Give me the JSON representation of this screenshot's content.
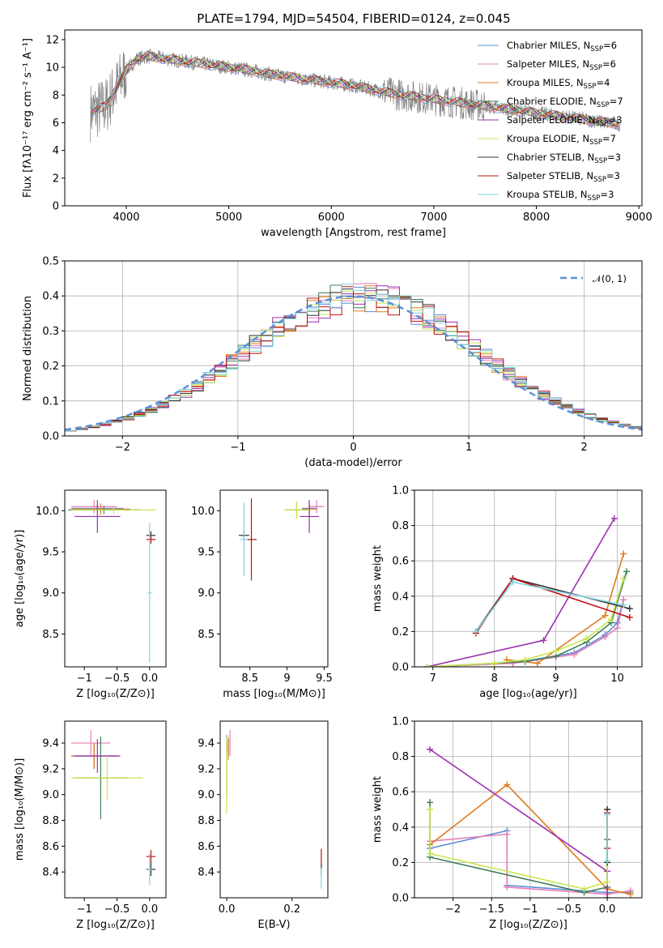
{
  "figure": {
    "title": "PLATE=1794, MJD=54504, FIBERID=0124, z=0.045"
  },
  "colors": {
    "chabrier_miles": "#5b8fd8",
    "salpeter_miles": "#e67fb8",
    "kroupa_miles": "#e07a1f",
    "chabrier_elodie": "#3f7f5a",
    "salpeter_elodie": "#9b2fb0",
    "kroupa_elodie": "#c8e64a",
    "chabrier_stelib": "#333333",
    "salpeter_stelib": "#c01010",
    "kroupa_stelib": "#7fd6e0",
    "data": "#808080",
    "grid": "#b0b0b0"
  },
  "legend_spectrum": [
    {
      "pre": "Chabrier MILES, N",
      "sub": "SSP",
      "post": "=6",
      "color_key": "chabrier_miles"
    },
    {
      "pre": "Salpeter MILES, N",
      "sub": "SSP",
      "post": "=6",
      "color_key": "salpeter_miles"
    },
    {
      "pre": "Kroupa MILES, N",
      "sub": "SSP",
      "post": "=4",
      "color_key": "kroupa_miles"
    },
    {
      "pre": "Chabrier ELODIE, N",
      "sub": "SSP",
      "post": "=7",
      "color_key": "chabrier_elodie"
    },
    {
      "pre": "Salpeter ELODIE, N",
      "sub": "SSP",
      "post": "=3",
      "color_key": "salpeter_elodie"
    },
    {
      "pre": "Kroupa ELODIE, N",
      "sub": "SSP",
      "post": "=7",
      "color_key": "kroupa_elodie"
    },
    {
      "pre": "Chabrier STELIB, N",
      "sub": "SSP",
      "post": "=3",
      "color_key": "chabrier_stelib"
    },
    {
      "pre": "Salpeter STELIB, N",
      "sub": "SSP",
      "post": "=3",
      "color_key": "salpeter_stelib"
    },
    {
      "pre": "Kroupa STELIB, N",
      "sub": "SSP",
      "post": "=3",
      "color_key": "kroupa_stelib"
    }
  ],
  "chart_data": [
    {
      "id": "spectrum",
      "type": "line",
      "xlabel": "wavelength [Angstrom, rest frame]",
      "ylabel": "Flux [fλ10⁻¹⁷ erg cm⁻² s⁻¹ A⁻¹]",
      "xlim": [
        3400,
        9030
      ],
      "ylim": [
        0,
        12.7
      ],
      "xticks": [
        4000,
        5000,
        6000,
        7000,
        8000,
        9000
      ],
      "yticks": [
        0,
        2,
        4,
        6,
        8,
        10,
        12
      ],
      "grid": false,
      "legend": "upper right",
      "continuum": {
        "x": [
          3650,
          3700,
          3800,
          3900,
          4000,
          4100,
          4200,
          4400,
          4600,
          4800,
          5000,
          5200,
          5400,
          5600,
          5800,
          6000,
          6200,
          6400,
          6600,
          6800,
          7000,
          7200,
          7400,
          7600,
          7800,
          8000,
          8200,
          8400,
          8600,
          8800
        ],
        "y": [
          6.8,
          6.9,
          7.2,
          8.5,
          9.8,
          10.6,
          10.8,
          10.6,
          10.4,
          10.2,
          10.0,
          9.8,
          9.5,
          9.3,
          9.1,
          8.9,
          8.7,
          8.4,
          8.1,
          7.9,
          7.7,
          7.5,
          7.3,
          7.1,
          6.9,
          6.7,
          6.5,
          6.3,
          6.1,
          5.9
        ]
      }
    },
    {
      "id": "residuals",
      "type": "histogram",
      "xlabel": "(data-model)/error",
      "ylabel": "Normed distribution",
      "xlim": [
        -2.5,
        2.5
      ],
      "ylim": [
        0,
        0.5
      ],
      "xticks": [
        -2,
        -1,
        0,
        1,
        2
      ],
      "yticks": [
        0.0,
        0.1,
        0.2,
        0.3,
        0.4,
        0.5
      ],
      "grid": true,
      "legend": "upper right",
      "legend_label": "𝒩(0, 1)",
      "bin_width": 0.1
    },
    {
      "id": "age_vs_Z",
      "type": "scatter",
      "xlabel": "Z [log₁₀(Z/Z⊙)]",
      "ylabel": "age  [log₁₀(age/yr)]",
      "xlim": [
        -1.3,
        0.25
      ],
      "ylim": [
        8.1,
        10.25
      ],
      "xticks": [
        -1.0,
        -0.5,
        0.0
      ],
      "yticks": [
        8.5,
        9.0,
        9.5,
        10.0
      ],
      "grid": false,
      "points": [
        {
          "m": "chabrier_miles",
          "x": -0.8,
          "y": 10.03,
          "xe": 0.4,
          "ye": 0.06
        },
        {
          "m": "salpeter_miles",
          "x": -0.85,
          "y": 10.05,
          "xe": 0.35,
          "ye": 0.08
        },
        {
          "m": "kroupa_miles",
          "x": -0.75,
          "y": 10.02,
          "xe": 0.45,
          "ye": 0.07
        },
        {
          "m": "chabrier_elodie",
          "x": -0.7,
          "y": 10.01,
          "xe": 0.55,
          "ye": 0.05
        },
        {
          "m": "salpeter_elodie",
          "x": -0.8,
          "y": 9.93,
          "xe": 0.35,
          "ye": 0.2
        },
        {
          "m": "kroupa_elodie",
          "x": -0.55,
          "y": 10.01,
          "xe": 0.65,
          "ye": 0.05
        },
        {
          "m": "chabrier_stelib",
          "x": 0.02,
          "y": 9.7,
          "xe": 0.07,
          "ye": 0.05
        },
        {
          "m": "salpeter_stelib",
          "x": 0.02,
          "y": 9.65,
          "xe": 0.07,
          "ye": 0.05
        },
        {
          "m": "kroupa_stelib",
          "x": 0.0,
          "y": 9.0,
          "xe": 0.03,
          "ye": 0.85
        }
      ]
    },
    {
      "id": "age_vs_mass",
      "type": "scatter",
      "xlabel": "mass [log₁₀(M/M⊙)]",
      "ylabel": "",
      "xlim": [
        8.1,
        9.55
      ],
      "ylim": [
        8.1,
        10.25
      ],
      "xticks": [
        8.5,
        9.0,
        9.5
      ],
      "yticks": [
        8.5,
        9.0,
        9.5,
        10.0
      ],
      "grid": false,
      "points": [
        {
          "m": "chabrier_miles",
          "x": 9.3,
          "y": 10.03,
          "xe": 0.1,
          "ye": 0.06
        },
        {
          "m": "salpeter_miles",
          "x": 9.4,
          "y": 10.05,
          "xe": 0.1,
          "ye": 0.08
        },
        {
          "m": "kroupa_miles",
          "x": 9.3,
          "y": 10.02,
          "xe": 0.1,
          "ye": 0.07
        },
        {
          "m": "chabrier_elodie",
          "x": 9.13,
          "y": 10.01,
          "xe": 0.15,
          "ye": 0.1
        },
        {
          "m": "salpeter_elodie",
          "x": 9.3,
          "y": 9.93,
          "xe": 0.13,
          "ye": 0.2
        },
        {
          "m": "kroupa_elodie",
          "x": 9.13,
          "y": 10.01,
          "xe": 0.17,
          "ye": 0.1
        },
        {
          "m": "chabrier_stelib",
          "x": 8.42,
          "y": 9.7,
          "xe": 0.07,
          "ye": 0.06
        },
        {
          "m": "salpeter_stelib",
          "x": 8.52,
          "y": 9.65,
          "xe": 0.07,
          "ye": 0.5
        },
        {
          "m": "kroupa_stelib",
          "x": 8.42,
          "y": 9.65,
          "xe": 0.05,
          "ye": 0.45
        }
      ]
    },
    {
      "id": "weight_vs_age",
      "type": "line",
      "xlabel": "age  [log₁₀(age/yr)]",
      "ylabel": "mass weight",
      "xlim": [
        6.7,
        10.4
      ],
      "ylim": [
        0,
        1.0
      ],
      "xticks": [
        7,
        8,
        9,
        10
      ],
      "yticks": [
        0.0,
        0.2,
        0.4,
        0.6,
        0.8,
        1.0
      ],
      "grid": true,
      "series": [
        {
          "m": "chabrier_miles",
          "x": [
            6.9,
            8.3,
            9.3,
            9.8,
            10.0,
            10.1
          ],
          "y": [
            0.0,
            0.02,
            0.08,
            0.18,
            0.25,
            0.38
          ]
        },
        {
          "m": "salpeter_miles",
          "x": [
            6.9,
            8.3,
            9.3,
            9.8,
            10.0,
            10.1
          ],
          "y": [
            0.0,
            0.02,
            0.07,
            0.17,
            0.22,
            0.38
          ]
        },
        {
          "m": "kroupa_miles",
          "x": [
            8.2,
            8.7,
            9.8,
            10.1
          ],
          "y": [
            0.04,
            0.02,
            0.29,
            0.64
          ]
        },
        {
          "m": "chabrier_elodie",
          "x": [
            6.9,
            8.0,
            8.5,
            9.0,
            9.5,
            9.9,
            10.15
          ],
          "y": [
            0.0,
            0.02,
            0.03,
            0.06,
            0.14,
            0.25,
            0.54
          ]
        },
        {
          "m": "salpeter_elodie",
          "x": [
            6.9,
            8.8,
            9.95
          ],
          "y": [
            0.0,
            0.15,
            0.84
          ]
        },
        {
          "m": "kroupa_elodie",
          "x": [
            6.9,
            8.0,
            8.5,
            9.0,
            9.5,
            9.9,
            10.1
          ],
          "y": [
            0.0,
            0.02,
            0.04,
            0.09,
            0.16,
            0.27,
            0.5
          ]
        },
        {
          "m": "chabrier_stelib",
          "x": [
            7.7,
            8.3,
            10.2
          ],
          "y": [
            0.2,
            0.5,
            0.33
          ]
        },
        {
          "m": "salpeter_stelib",
          "x": [
            7.7,
            8.3,
            10.2
          ],
          "y": [
            0.19,
            0.5,
            0.28
          ]
        },
        {
          "m": "kroupa_stelib",
          "x": [
            7.7,
            8.3,
            10.1
          ],
          "y": [
            0.2,
            0.48,
            0.35
          ]
        }
      ]
    },
    {
      "id": "mass_vs_Z",
      "type": "scatter",
      "xlabel": "Z [log₁₀(Z/Z⊙)]",
      "ylabel": "mass [log₁₀(M/M⊙)]",
      "xlim": [
        -1.3,
        0.25
      ],
      "ylim": [
        8.2,
        9.57
      ],
      "xticks": [
        -1.0,
        -0.5,
        0.0
      ],
      "yticks": [
        8.4,
        8.6,
        8.8,
        9.0,
        9.2,
        9.4
      ],
      "grid": false,
      "points": [
        {
          "m": "chabrier_miles",
          "x": -0.85,
          "y": 9.3,
          "xe": 0.35,
          "ye": 0.1
        },
        {
          "m": "salpeter_miles",
          "x": -0.9,
          "y": 9.4,
          "xe": 0.3,
          "ye": 0.1
        },
        {
          "m": "kroupa_miles",
          "x": -0.85,
          "y": 9.3,
          "xe": 0.35,
          "ye": 0.1
        },
        {
          "m": "chabrier_elodie",
          "x": -0.75,
          "y": 9.13,
          "xe": 0.4,
          "ye": 0.32
        },
        {
          "m": "salpeter_elodie",
          "x": -0.8,
          "y": 9.3,
          "xe": 0.35,
          "ye": 0.13
        },
        {
          "m": "kroupa_elodie",
          "x": -0.65,
          "y": 9.13,
          "xe": 0.55,
          "ye": 0.17
        },
        {
          "m": "chabrier_stelib",
          "x": 0.02,
          "y": 8.42,
          "xe": 0.07,
          "ye": 0.05
        },
        {
          "m": "salpeter_stelib",
          "x": 0.02,
          "y": 8.52,
          "xe": 0.07,
          "ye": 0.05
        },
        {
          "m": "kroupa_stelib",
          "x": 0.0,
          "y": 8.42,
          "xe": 0.03,
          "ye": 0.12
        }
      ]
    },
    {
      "id": "mass_vs_ebv",
      "type": "scatter",
      "xlabel": "E(B-V)",
      "ylabel": "",
      "xlim": [
        -0.02,
        0.31
      ],
      "ylim": [
        8.2,
        9.57
      ],
      "xticks": [
        0.0,
        0.2
      ],
      "yticks": [
        8.4,
        8.6,
        8.8,
        9.0,
        9.2,
        9.4
      ],
      "grid": false,
      "points": [
        {
          "m": "chabrier_miles",
          "x": 0.005,
          "y": 9.38,
          "xe": 0,
          "ye": 0.06
        },
        {
          "m": "salpeter_miles",
          "x": 0.01,
          "y": 9.4,
          "xe": 0,
          "ye": 0.1
        },
        {
          "m": "kroupa_miles",
          "x": 0.005,
          "y": 9.35,
          "xe": 0,
          "ye": 0.08
        },
        {
          "m": "chabrier_elodie",
          "x": 0.0,
          "y": 9.2,
          "xe": 0,
          "ye": 0.2
        },
        {
          "m": "salpeter_elodie",
          "x": 0.0,
          "y": 9.4,
          "xe": 0,
          "ye": 0.06
        },
        {
          "m": "kroupa_elodie",
          "x": 0.0,
          "y": 9.15,
          "xe": 0,
          "ye": 0.3
        },
        {
          "m": "chabrier_stelib",
          "x": 0.29,
          "y": 8.42,
          "xe": 0,
          "ye": 0.05
        },
        {
          "m": "salpeter_stelib",
          "x": 0.29,
          "y": 8.52,
          "xe": 0,
          "ye": 0.06
        },
        {
          "m": "kroupa_stelib",
          "x": 0.29,
          "y": 8.35,
          "xe": 0,
          "ye": 0.08
        }
      ]
    },
    {
      "id": "weight_vs_Z",
      "type": "line",
      "xlabel": "Z [log₁₀(Z/Z⊙)]",
      "ylabel": "mass weight",
      "xlim": [
        -2.5,
        0.45
      ],
      "ylim": [
        0,
        1.0
      ],
      "xticks": [
        -2.0,
        -1.5,
        -1.0,
        -0.5,
        0.0
      ],
      "yticks": [
        0.0,
        0.2,
        0.4,
        0.6,
        0.8,
        1.0
      ],
      "grid": true,
      "series": [
        {
          "m": "chabrier_miles",
          "x": [
            -2.3,
            -1.3,
            -1.3,
            0.0,
            0.3
          ],
          "y": [
            0.28,
            0.38,
            0.07,
            0.03,
            0.03
          ]
        },
        {
          "m": "salpeter_miles",
          "x": [
            -2.3,
            -1.3,
            -1.3,
            0.0,
            0.3
          ],
          "y": [
            0.32,
            0.36,
            0.06,
            0.02,
            0.04
          ]
        },
        {
          "m": "kroupa_miles",
          "x": [
            -2.3,
            -1.3,
            0.0,
            0.3
          ],
          "y": [
            0.3,
            0.64,
            0.05,
            0.02
          ]
        },
        {
          "m": "chabrier_elodie",
          "x": [
            -2.3,
            -2.3,
            -0.3,
            0.0,
            0.0
          ],
          "y": [
            0.54,
            0.23,
            0.03,
            0.06,
            0.33
          ]
        },
        {
          "m": "salpeter_elodie",
          "x": [
            -2.3,
            0.0,
            0.0
          ],
          "y": [
            0.84,
            0.15,
            0.0
          ]
        },
        {
          "m": "kroupa_elodie",
          "x": [
            -2.3,
            -2.3,
            -0.3,
            0.0,
            0.0
          ],
          "y": [
            0.5,
            0.25,
            0.05,
            0.09,
            0.5
          ]
        },
        {
          "m": "chabrier_stelib",
          "x": [
            0.0,
            0.0
          ],
          "y": [
            0.5,
            0.2
          ]
        },
        {
          "m": "salpeter_stelib",
          "x": [
            0.0,
            0.0
          ],
          "y": [
            0.48,
            0.28
          ]
        },
        {
          "m": "kroupa_stelib",
          "x": [
            0.0,
            0.0
          ],
          "y": [
            0.47,
            0.21
          ]
        }
      ]
    }
  ]
}
